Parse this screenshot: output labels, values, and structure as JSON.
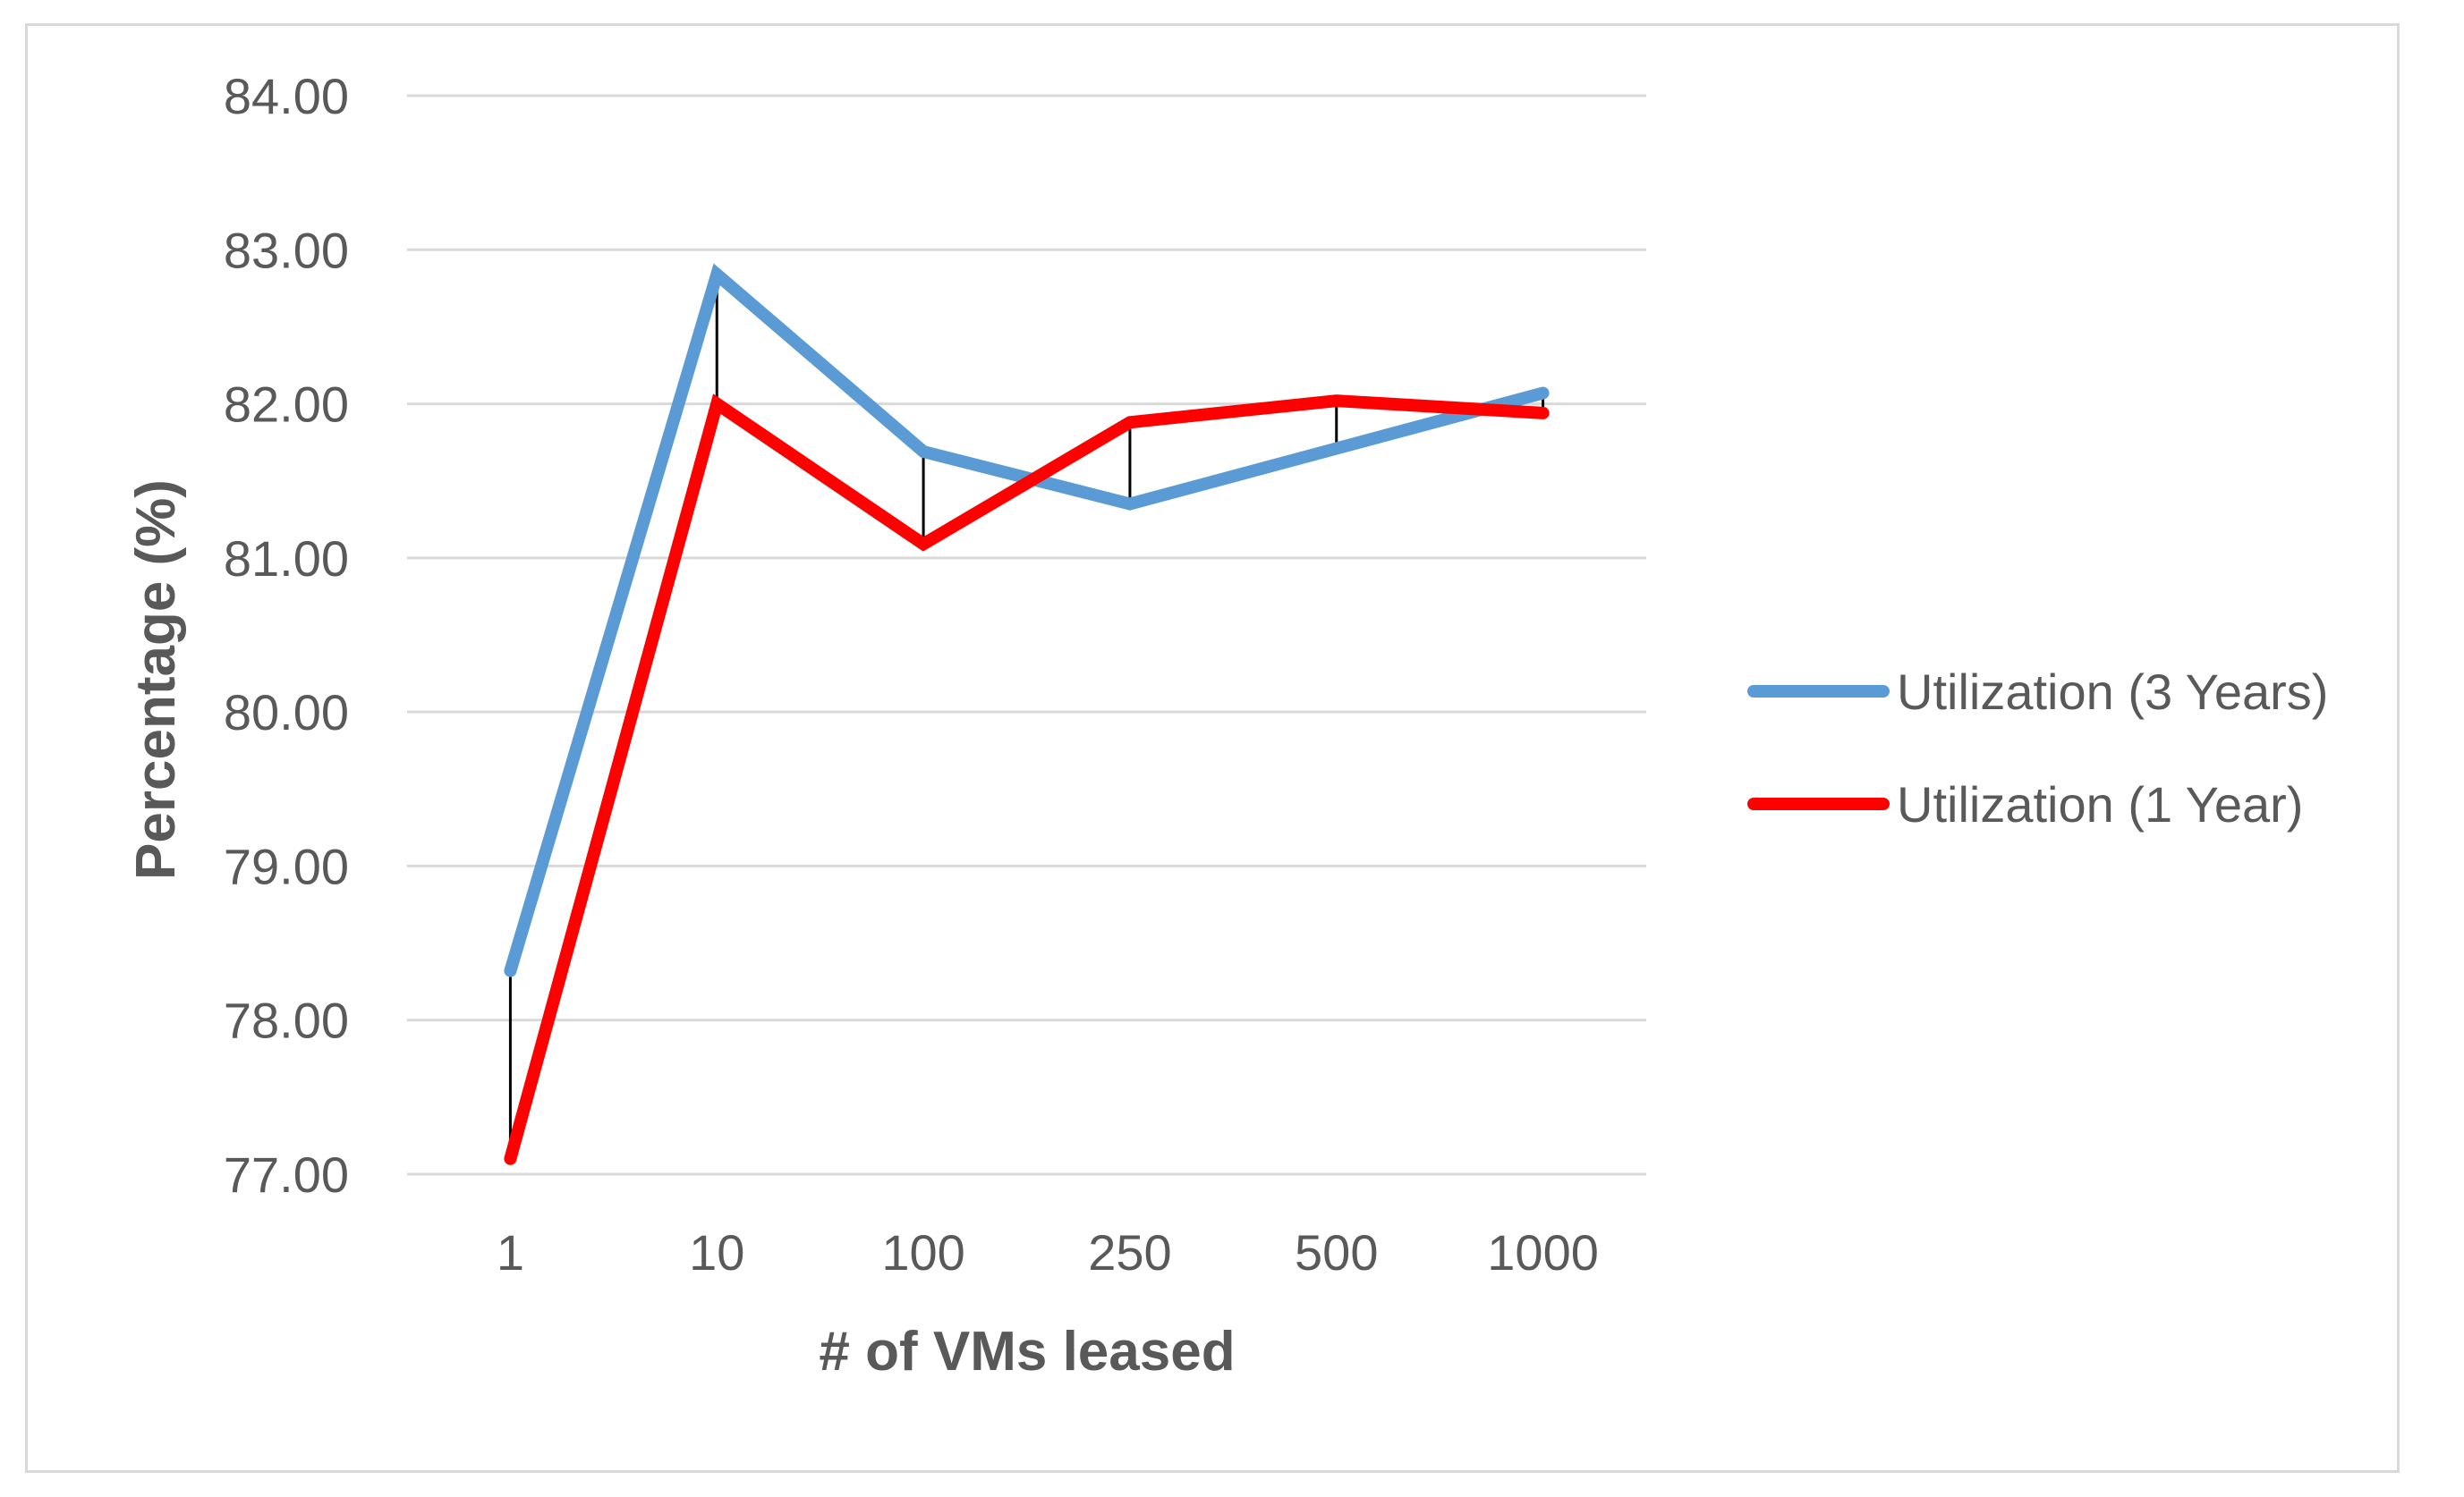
{
  "chart_data": {
    "type": "line",
    "title": "",
    "xlabel": "# of VMs leased",
    "ylabel": "Percentage (%)",
    "categories": [
      "1",
      "10",
      "100",
      "250",
      "500",
      "1000"
    ],
    "ylim": [
      77,
      84
    ],
    "yticks": [
      "77.00",
      "78.00",
      "79.00",
      "80.00",
      "81.00",
      "82.00",
      "83.00",
      "84.00"
    ],
    "grid": true,
    "legend_position": "right",
    "drop_lines": true,
    "series": [
      {
        "name": "Utilization (3 Years)",
        "color": "#5b9bd5",
        "values": [
          78.32,
          82.84,
          81.69,
          81.35,
          81.71,
          82.07
        ]
      },
      {
        "name": "Utilization (1 Year)",
        "color": "#ff0000",
        "values": [
          77.1,
          82.0,
          81.09,
          81.88,
          82.02,
          81.94
        ]
      }
    ]
  }
}
